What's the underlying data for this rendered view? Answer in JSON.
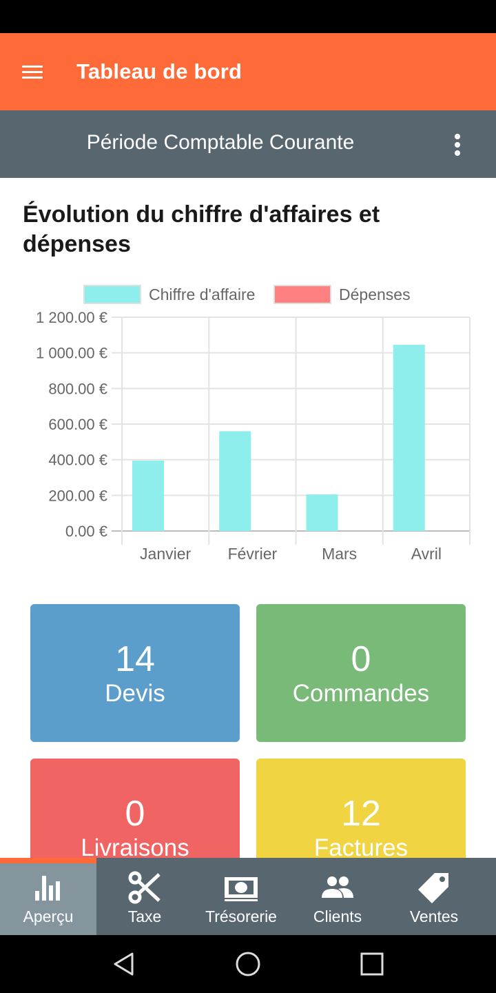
{
  "app_bar": {
    "title": "Tableau de bord",
    "menu_icon": "menu-icon"
  },
  "sub_bar": {
    "title": "Période Comptable Courante",
    "more_icon": "more-vert-icon"
  },
  "chart_section": {
    "heading": "Évolution du chiffre d'affaires et dépenses"
  },
  "chart_data": {
    "type": "bar",
    "title": "",
    "xlabel": "",
    "ylabel": "",
    "categories": [
      "Janvier",
      "Février",
      "Mars",
      "Avril"
    ],
    "series": [
      {
        "name": "Chiffre d'affaire",
        "color": "#8eeeec",
        "values": [
          395,
          560,
          205,
          1045
        ]
      },
      {
        "name": "Dépenses",
        "color": "#ff8080",
        "values": [
          0,
          0,
          0,
          0
        ]
      }
    ],
    "ylim": [
      0,
      1200
    ],
    "yticks": [
      "0.00 €",
      "200.00 €",
      "400.00 €",
      "600.00 €",
      "800.00 €",
      "1 000.00 €",
      "1 200.00 €"
    ],
    "grid": true,
    "legend": "top"
  },
  "tiles": [
    {
      "value": "14",
      "label": "Devis",
      "color": "#5b9ecb"
    },
    {
      "value": "0",
      "label": "Commandes",
      "color": "#79ba79"
    },
    {
      "value": "0",
      "label": "Livraisons",
      "color": "#f06463"
    },
    {
      "value": "12",
      "label": "Factures",
      "color": "#f0d442"
    }
  ],
  "bottom_nav": {
    "items": [
      {
        "label": "Aperçu",
        "icon": "bar-chart-icon",
        "active": true
      },
      {
        "label": "Taxe",
        "icon": "scissors-icon",
        "active": false
      },
      {
        "label": "Trésorerie",
        "icon": "money-icon",
        "active": false
      },
      {
        "label": "Clients",
        "icon": "people-icon",
        "active": false
      },
      {
        "label": "Ventes",
        "icon": "tag-icon",
        "active": false
      }
    ]
  },
  "android_nav": {
    "back": "back-icon",
    "home": "home-icon",
    "recents": "recents-icon"
  }
}
